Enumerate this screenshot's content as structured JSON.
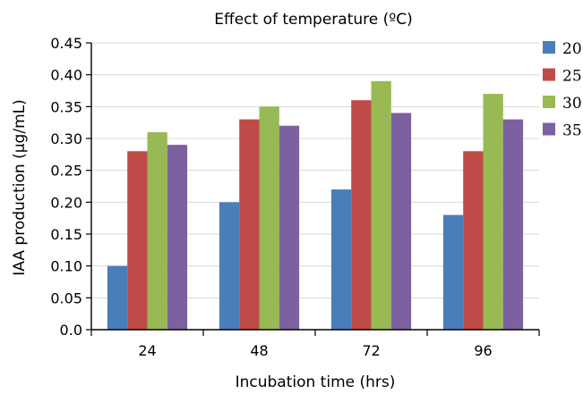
{
  "chart_data": {
    "type": "bar",
    "title": "Effect of temperature (ºC)",
    "xlabel": "Incubation time (hrs)",
    "ylabel": "IAA production (μg/mL)",
    "categories": [
      "24",
      "48",
      "72",
      "96"
    ],
    "ylim": [
      0,
      0.45
    ],
    "yticks": [
      "0.0",
      "0.05",
      "0.10",
      "0.15",
      "0.20",
      "0.25",
      "0.30",
      "0.35",
      "0.40",
      "0.45"
    ],
    "grid": true,
    "legend_position": "right",
    "series": [
      {
        "name": "20",
        "color": "#4a7ebb",
        "values": [
          0.1,
          0.2,
          0.22,
          0.18
        ]
      },
      {
        "name": "25",
        "color": "#be4b48",
        "values": [
          0.28,
          0.33,
          0.36,
          0.28
        ]
      },
      {
        "name": "30",
        "color": "#98b954",
        "values": [
          0.31,
          0.35,
          0.39,
          0.37
        ]
      },
      {
        "name": "35",
        "color": "#7d60a0",
        "values": [
          0.29,
          0.32,
          0.34,
          0.33
        ]
      }
    ]
  }
}
